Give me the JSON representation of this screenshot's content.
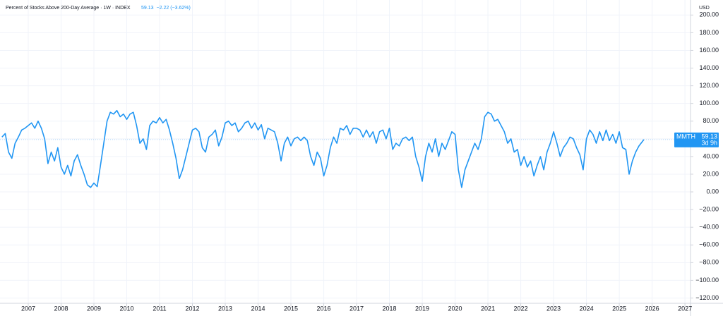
{
  "chart_data": {
    "type": "line",
    "title": "Percent of Stocks Above 200-Day Average · 1W · INDEX",
    "last_value": "59.13",
    "change": "−2.22 (−3.62%)",
    "currency": "USD",
    "symbol": "MMTH",
    "countdown": "3d 9h",
    "grid": true,
    "xlim": [
      2006.14,
      2027.17
    ],
    "xticks": [
      2007,
      2008,
      2009,
      2010,
      2011,
      2012,
      2013,
      2014,
      2015,
      2016,
      2017,
      2018,
      2019,
      2020,
      2021,
      2022,
      2023,
      2024,
      2025,
      2026,
      2027
    ],
    "ylim": [
      -126,
      217
    ],
    "yticks": [
      {
        "value": 200,
        "label": "200.00"
      },
      {
        "value": 180,
        "label": "180.00"
      },
      {
        "value": 160,
        "label": "160.00"
      },
      {
        "value": 140,
        "label": "140.00"
      },
      {
        "value": 120,
        "label": "120.00"
      },
      {
        "value": 100,
        "label": "100.00"
      },
      {
        "value": 80,
        "label": "80.00"
      },
      {
        "value": 60,
        "label": "60.00"
      },
      {
        "value": 40,
        "label": "40.00"
      },
      {
        "value": 20,
        "label": "20.00"
      },
      {
        "value": 0,
        "label": "0.00"
      },
      {
        "value": -20,
        "label": "−20.00"
      },
      {
        "value": -40,
        "label": "−40.00"
      },
      {
        "value": -60,
        "label": "−60.00"
      },
      {
        "value": -80,
        "label": "−80.00"
      },
      {
        "value": -100,
        "label": "−100.00"
      },
      {
        "value": -120,
        "label": "−120.00"
      }
    ],
    "series": [
      {
        "name": "MMTH",
        "color": "#2196f3",
        "x": [
          2006.2,
          2006.3,
          2006.4,
          2006.5,
          2006.6,
          2006.7,
          2006.8,
          2006.9,
          2007.0,
          2007.1,
          2007.2,
          2007.3,
          2007.4,
          2007.5,
          2007.6,
          2007.7,
          2007.8,
          2007.9,
          2008.0,
          2008.1,
          2008.2,
          2008.3,
          2008.4,
          2008.5,
          2008.6,
          2008.7,
          2008.8,
          2008.9,
          2009.0,
          2009.1,
          2009.2,
          2009.3,
          2009.4,
          2009.5,
          2009.6,
          2009.7,
          2009.8,
          2009.9,
          2010.0,
          2010.1,
          2010.2,
          2010.3,
          2010.4,
          2010.5,
          2010.6,
          2010.7,
          2010.8,
          2010.9,
          2011.0,
          2011.1,
          2011.2,
          2011.3,
          2011.4,
          2011.5,
          2011.6,
          2011.7,
          2011.8,
          2011.9,
          2012.0,
          2012.1,
          2012.2,
          2012.3,
          2012.4,
          2012.5,
          2012.6,
          2012.7,
          2012.8,
          2012.9,
          2013.0,
          2013.1,
          2013.2,
          2013.3,
          2013.4,
          2013.5,
          2013.6,
          2013.7,
          2013.8,
          2013.9,
          2014.0,
          2014.1,
          2014.2,
          2014.3,
          2014.4,
          2014.5,
          2014.6,
          2014.7,
          2014.8,
          2014.9,
          2015.0,
          2015.1,
          2015.2,
          2015.3,
          2015.4,
          2015.5,
          2015.6,
          2015.7,
          2015.8,
          2015.9,
          2016.0,
          2016.1,
          2016.2,
          2016.3,
          2016.4,
          2016.5,
          2016.6,
          2016.7,
          2016.8,
          2016.9,
          2017.0,
          2017.1,
          2017.2,
          2017.3,
          2017.4,
          2017.5,
          2017.6,
          2017.7,
          2017.8,
          2017.9,
          2018.0,
          2018.1,
          2018.2,
          2018.3,
          2018.4,
          2018.5,
          2018.6,
          2018.7,
          2018.8,
          2018.9,
          2019.0,
          2019.1,
          2019.2,
          2019.3,
          2019.4,
          2019.5,
          2019.6,
          2019.7,
          2019.8,
          2019.9,
          2020.0,
          2020.1,
          2020.2,
          2020.3,
          2020.4,
          2020.5,
          2020.6,
          2020.7,
          2020.8,
          2020.9,
          2021.0,
          2021.1,
          2021.2,
          2021.3,
          2021.4,
          2021.5,
          2021.6,
          2021.7,
          2021.8,
          2021.9,
          2022.0,
          2022.1,
          2022.2,
          2022.3,
          2022.4,
          2022.5,
          2022.6,
          2022.7,
          2022.8,
          2022.9,
          2023.0,
          2023.1,
          2023.2,
          2023.3,
          2023.4,
          2023.5,
          2023.6,
          2023.7,
          2023.8,
          2023.9,
          2024.0,
          2024.1,
          2024.2,
          2024.3,
          2024.4,
          2024.5,
          2024.6,
          2024.7,
          2024.8,
          2024.9,
          2025.0,
          2025.1,
          2025.2,
          2025.3,
          2025.4,
          2025.5,
          2025.6,
          2025.75
        ],
        "values": [
          62,
          66,
          45,
          38,
          55,
          62,
          70,
          72,
          75,
          78,
          72,
          80,
          72,
          60,
          32,
          45,
          35,
          50,
          28,
          20,
          30,
          18,
          35,
          42,
          30,
          20,
          8,
          5,
          10,
          6,
          30,
          55,
          80,
          90,
          88,
          92,
          85,
          88,
          82,
          88,
          90,
          75,
          55,
          60,
          48,
          75,
          80,
          78,
          84,
          78,
          82,
          70,
          55,
          38,
          15,
          25,
          40,
          55,
          70,
          72,
          68,
          50,
          45,
          62,
          65,
          70,
          52,
          62,
          78,
          80,
          75,
          78,
          68,
          72,
          78,
          80,
          72,
          78,
          70,
          76,
          60,
          72,
          70,
          68,
          55,
          35,
          55,
          62,
          52,
          60,
          62,
          58,
          62,
          58,
          40,
          30,
          45,
          38,
          18,
          30,
          50,
          62,
          55,
          72,
          70,
          75,
          65,
          72,
          72,
          70,
          62,
          70,
          62,
          68,
          55,
          68,
          70,
          60,
          72,
          48,
          55,
          52,
          60,
          62,
          58,
          62,
          40,
          28,
          12,
          40,
          55,
          45,
          60,
          40,
          55,
          48,
          58,
          68,
          65,
          25,
          5,
          25,
          35,
          45,
          55,
          48,
          60,
          85,
          90,
          88,
          80,
          82,
          75,
          68,
          55,
          60,
          45,
          48,
          30,
          40,
          28,
          35,
          18,
          30,
          40,
          25,
          45,
          55,
          68,
          55,
          40,
          50,
          55,
          62,
          60,
          50,
          42,
          25,
          60,
          70,
          65,
          55,
          68,
          58,
          70,
          58,
          65,
          55,
          68,
          50,
          48,
          20,
          35,
          45,
          52,
          59.13
        ]
      }
    ]
  }
}
